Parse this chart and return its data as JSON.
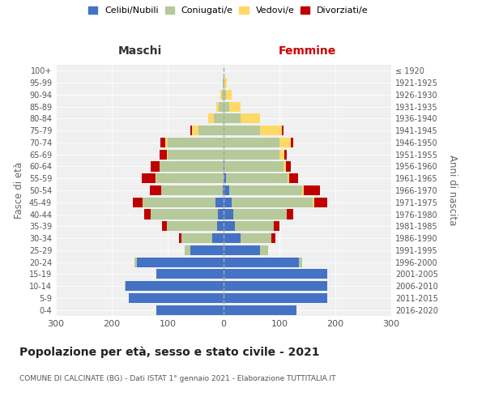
{
  "age_groups": [
    "0-4",
    "5-9",
    "10-14",
    "15-19",
    "20-24",
    "25-29",
    "30-34",
    "35-39",
    "40-44",
    "45-49",
    "50-54",
    "55-59",
    "60-64",
    "65-69",
    "70-74",
    "75-79",
    "80-84",
    "85-89",
    "90-94",
    "95-99",
    "100+"
  ],
  "birth_years": [
    "2016-2020",
    "2011-2015",
    "2006-2010",
    "2001-2005",
    "1996-2000",
    "1991-1995",
    "1986-1990",
    "1981-1985",
    "1976-1980",
    "1971-1975",
    "1966-1970",
    "1961-1965",
    "1956-1960",
    "1951-1955",
    "1946-1950",
    "1941-1945",
    "1936-1940",
    "1931-1935",
    "1926-1930",
    "1921-1925",
    "≤ 1920"
  ],
  "males": {
    "celibe": [
      120,
      170,
      175,
      120,
      155,
      60,
      20,
      12,
      10,
      15,
      2,
      0,
      0,
      0,
      0,
      0,
      0,
      0,
      0,
      0,
      0
    ],
    "coniugato": [
      0,
      0,
      2,
      0,
      5,
      10,
      55,
      90,
      120,
      130,
      110,
      120,
      115,
      100,
      100,
      45,
      18,
      8,
      3,
      1,
      0
    ],
    "vedovo": [
      0,
      0,
      0,
      0,
      0,
      0,
      0,
      0,
      0,
      0,
      0,
      2,
      0,
      2,
      5,
      12,
      10,
      5,
      3,
      1,
      0
    ],
    "divorziato": [
      0,
      0,
      0,
      0,
      0,
      0,
      5,
      8,
      12,
      18,
      20,
      25,
      15,
      12,
      8,
      2,
      0,
      0,
      0,
      0,
      0
    ]
  },
  "females": {
    "nubile": [
      130,
      185,
      185,
      185,
      135,
      65,
      30,
      20,
      18,
      15,
      10,
      5,
      2,
      0,
      0,
      0,
      0,
      0,
      0,
      0,
      0
    ],
    "coniugata": [
      0,
      0,
      0,
      0,
      5,
      15,
      55,
      70,
      95,
      145,
      130,
      110,
      105,
      100,
      100,
      65,
      30,
      10,
      5,
      2,
      0
    ],
    "vedova": [
      0,
      0,
      0,
      0,
      0,
      0,
      0,
      0,
      0,
      3,
      3,
      3,
      5,
      8,
      20,
      40,
      35,
      20,
      10,
      4,
      0
    ],
    "divorziata": [
      0,
      0,
      0,
      0,
      0,
      0,
      8,
      10,
      12,
      22,
      30,
      15,
      8,
      5,
      5,
      2,
      0,
      0,
      0,
      0,
      0
    ]
  },
  "colors": {
    "celibe_nubile": "#4472c4",
    "coniugato": "#b5c99a",
    "vedovo": "#ffd966",
    "divorziato": "#c00000"
  },
  "title": "Popolazione per età, sesso e stato civile - 2021",
  "subtitle": "COMUNE DI CALCINATE (BG) - Dati ISTAT 1° gennaio 2021 - Elaborazione TUTTITALIA.IT",
  "xlabel_left": "Maschi",
  "xlabel_right": "Femmine",
  "ylabel_left": "Fasce di età",
  "ylabel_right": "Anni di nascita",
  "xlim": 300,
  "legend_labels": [
    "Celibi/Nubili",
    "Coniugati/e",
    "Vedovi/e",
    "Divorziati/e"
  ],
  "bg_color": "#f0f0f0"
}
